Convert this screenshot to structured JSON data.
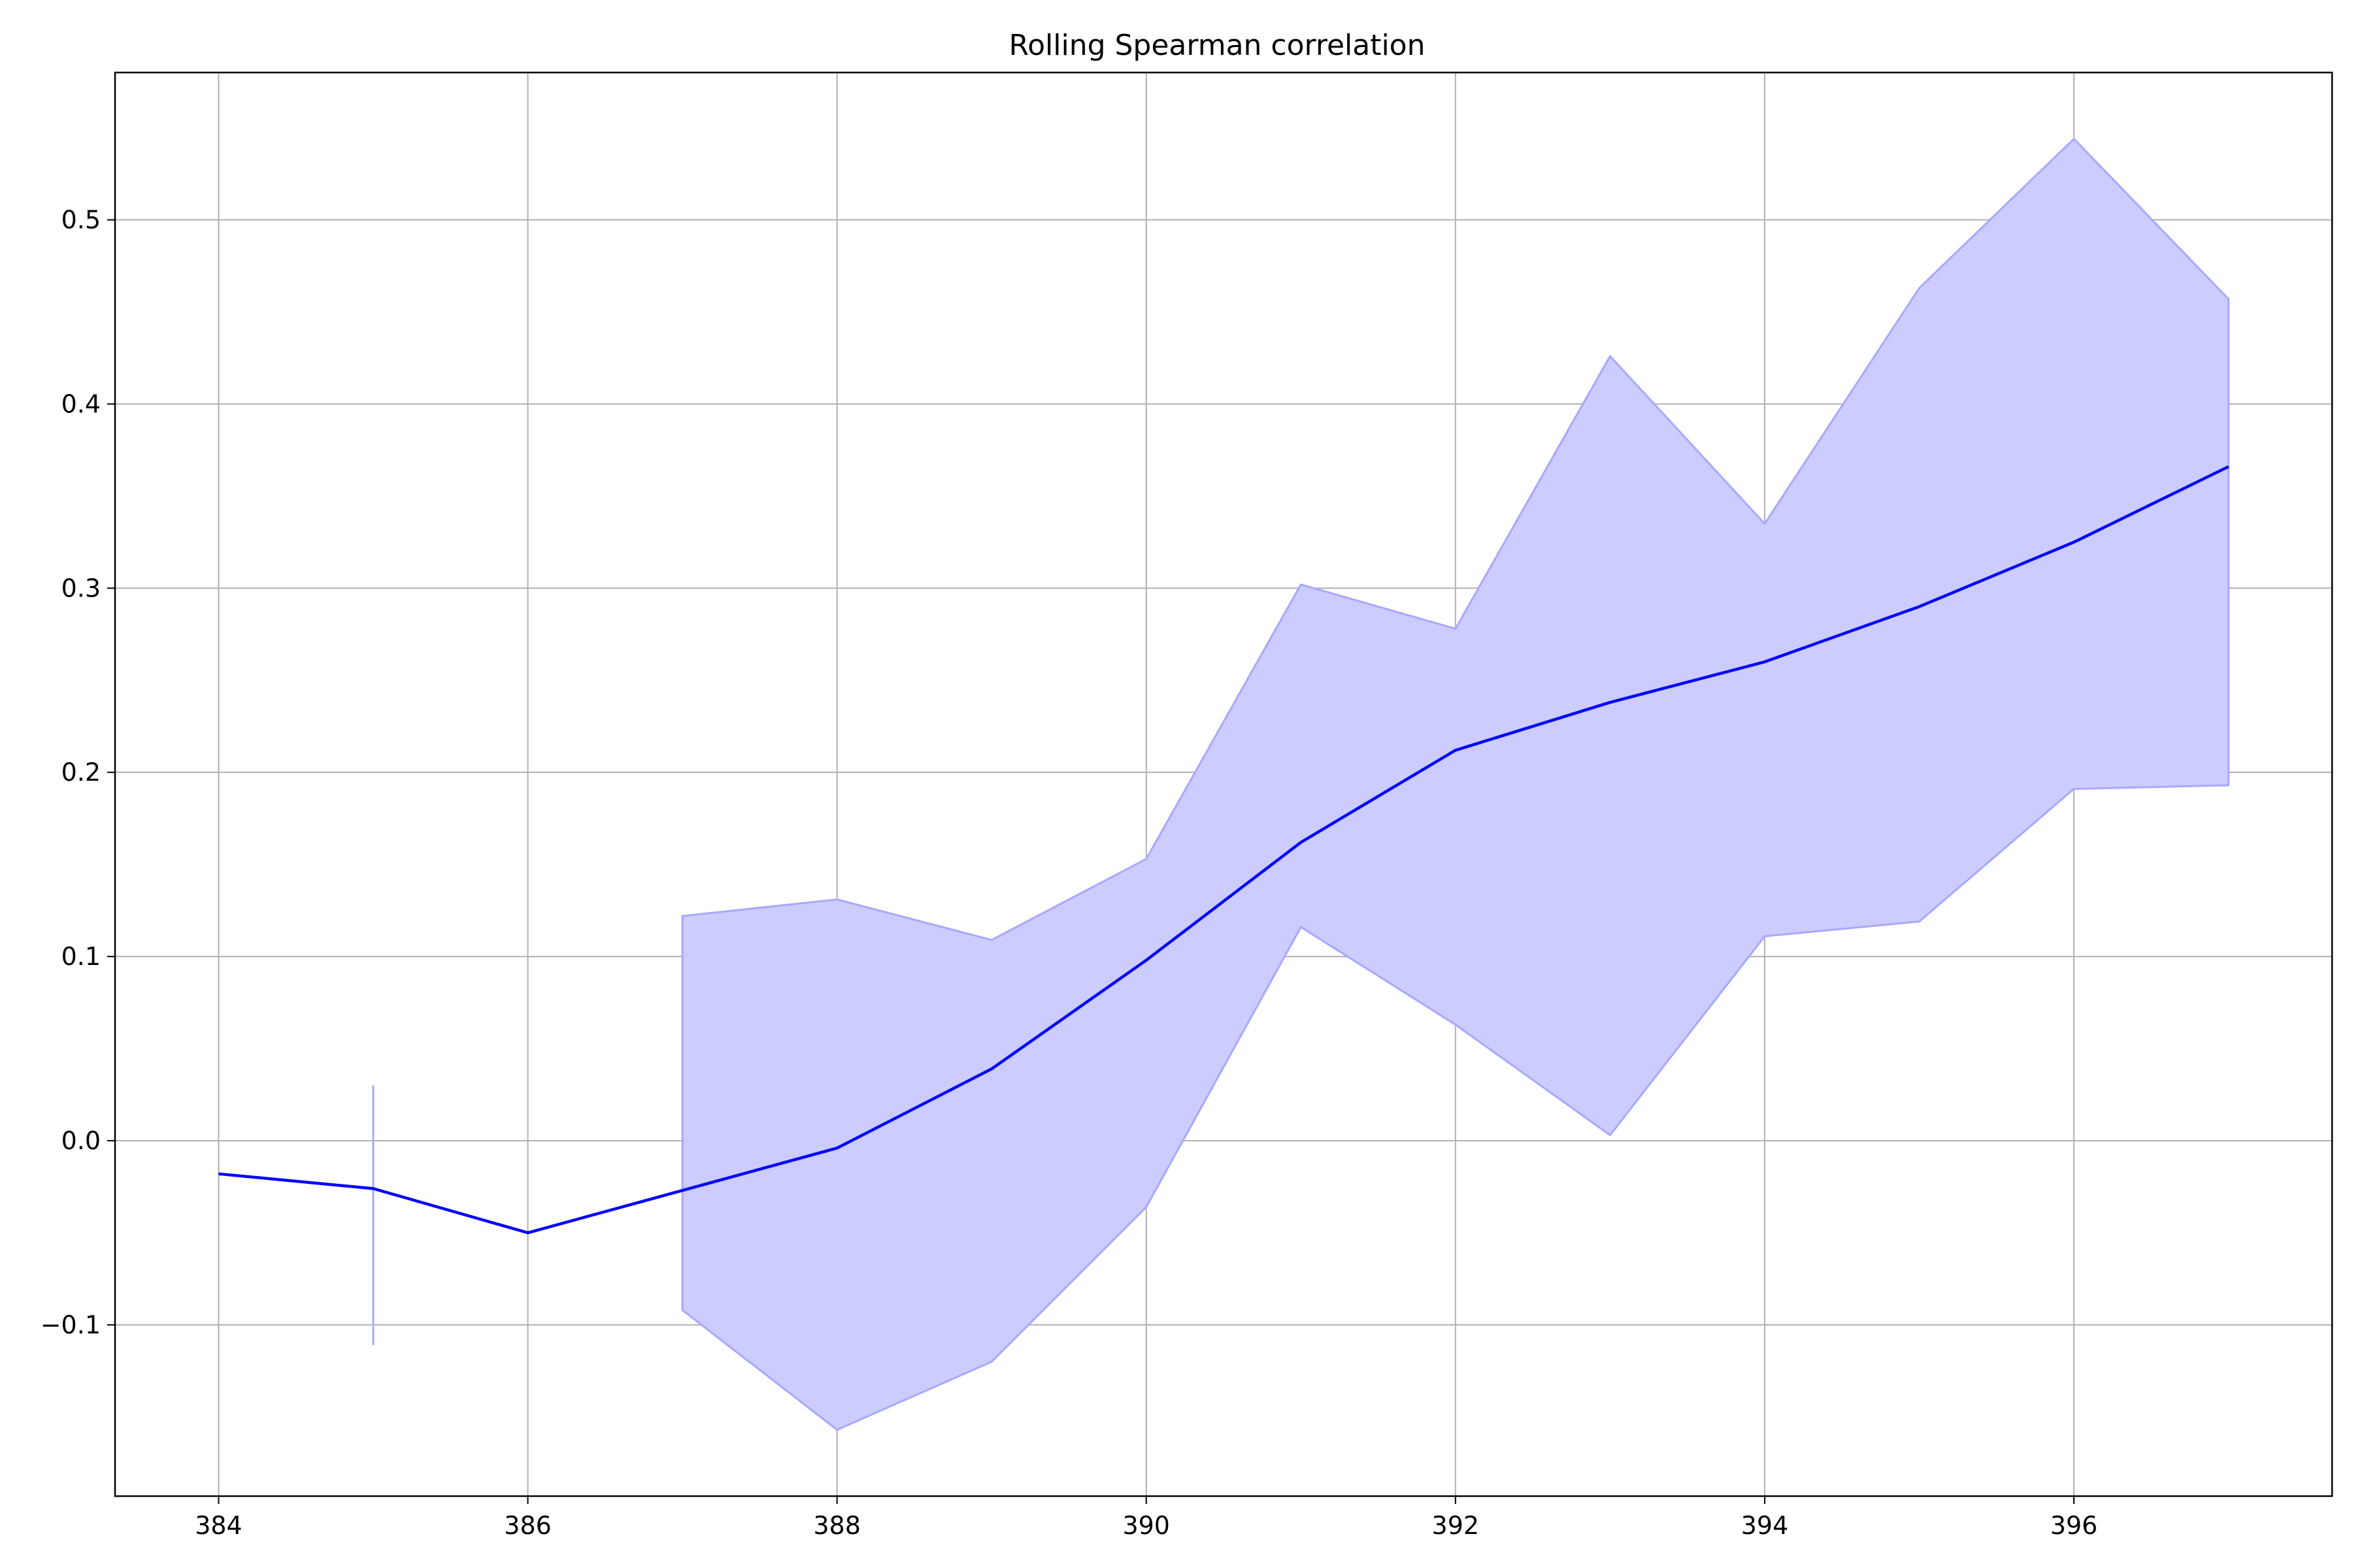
{
  "chart_data": {
    "type": "line",
    "title": "Rolling Spearman correlation",
    "xlabel": "",
    "ylabel": "",
    "xlim": [
      383.33,
      397.67
    ],
    "ylim": [
      -0.193,
      0.58
    ],
    "x_ticks": [
      384,
      386,
      388,
      390,
      392,
      394,
      396
    ],
    "y_ticks": [
      -0.1,
      0.0,
      0.1,
      0.2,
      0.3,
      0.4,
      0.5
    ],
    "y_tick_labels": [
      "−0.1",
      "0.0",
      "0.1",
      "0.2",
      "0.3",
      "0.4",
      "0.5"
    ],
    "grid": true,
    "legend": "none",
    "series": [
      {
        "x": [
          384,
          385,
          386,
          387,
          388,
          389,
          390,
          391,
          392,
          393,
          394,
          395,
          396,
          397
        ],
        "values": [
          -0.018,
          -0.026,
          -0.05,
          -0.027,
          -0.004,
          0.039,
          0.098,
          0.162,
          0.212,
          0.238,
          0.26,
          0.29,
          0.325,
          0.366
        ],
        "color": "#0000ff"
      }
    ],
    "band": {
      "color": "#ccccff",
      "edge_color": "#a8a8ff",
      "segments": [
        {
          "x": [
            385
          ],
          "upper": [
            0.03
          ],
          "lower": [
            -0.111
          ]
        },
        {
          "x": [
            387,
            388,
            389,
            390,
            391,
            392,
            393,
            394,
            395,
            396,
            397
          ],
          "upper": [
            0.122,
            0.131,
            0.109,
            0.153,
            0.302,
            0.278,
            0.426,
            0.335,
            0.463,
            0.544,
            0.457
          ],
          "lower": [
            -0.092,
            -0.157,
            -0.12,
            -0.036,
            0.116,
            0.063,
            0.003,
            0.111,
            0.119,
            0.191,
            0.193
          ]
        }
      ]
    },
    "colors": {
      "grid": "#b0b0b0",
      "axes": "#000000"
    }
  }
}
